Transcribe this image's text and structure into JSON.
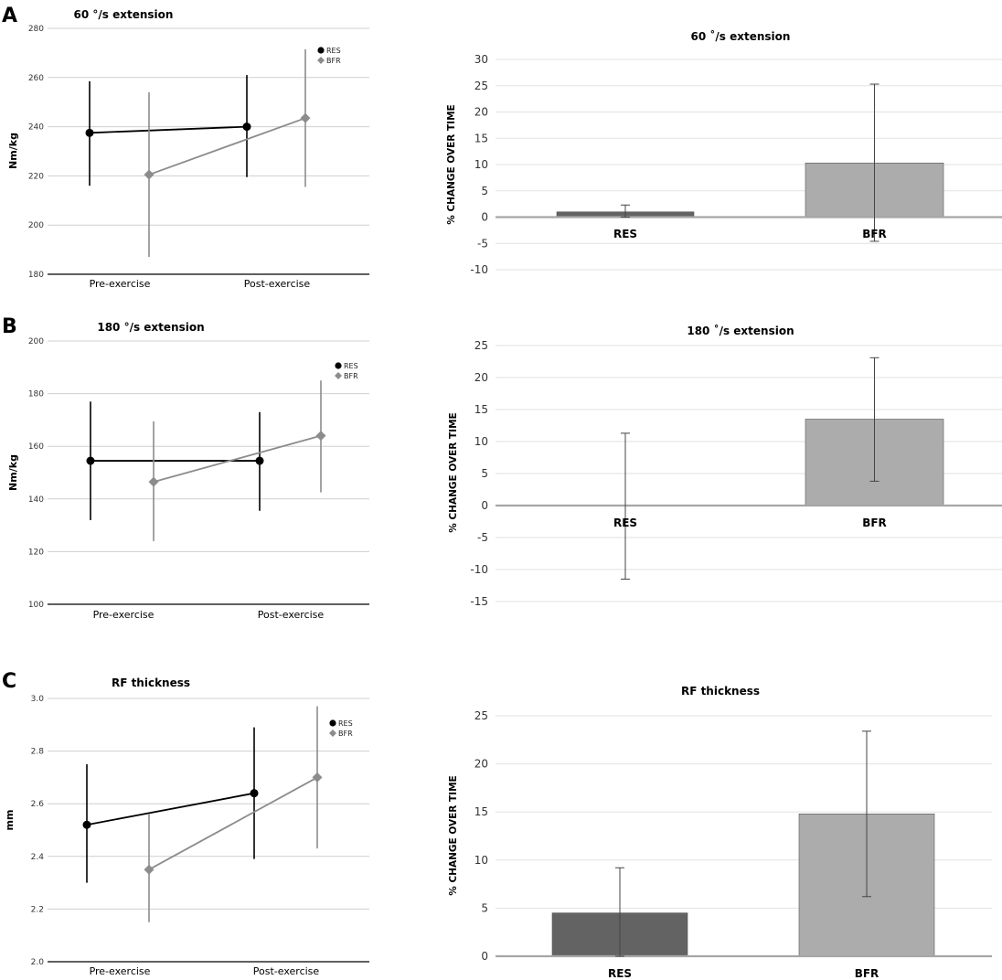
{
  "panels": [
    "A",
    "B",
    "C"
  ],
  "chart_data": [
    {
      "type": "line",
      "panel": "A",
      "title": "60 °/s  extension",
      "ylabel": "Nm/kg",
      "ylim": [
        180,
        280
      ],
      "yticks": [
        180,
        200,
        220,
        240,
        260,
        280
      ],
      "categories": [
        "Pre-exercise",
        "Post-exercise"
      ],
      "legend_position": "top-right",
      "series": [
        {
          "name": "RES",
          "color": "#000000",
          "marker": "circle",
          "values": [
            237.5,
            240.0
          ],
          "err_low": [
            216.0,
            219.5
          ],
          "err_high": [
            258.5,
            261.0
          ]
        },
        {
          "name": "BFR",
          "color": "#8c8c8c",
          "marker": "diamond",
          "values": [
            220.5,
            243.5
          ],
          "err_low": [
            187.0,
            215.5
          ],
          "err_high": [
            254.0,
            271.5
          ]
        }
      ]
    },
    {
      "type": "bar",
      "panel": "A",
      "title": "60 ˚/s extension",
      "ylabel": "% CHANGE OVER TIME",
      "ylim": [
        -10,
        30
      ],
      "yticks": [
        -10,
        -5,
        0,
        5,
        10,
        15,
        20,
        25,
        30
      ],
      "categories": [
        "RES",
        "BFR"
      ],
      "values": [
        1.0,
        10.3
      ],
      "err_low": [
        0.0,
        -4.6
      ],
      "err_high": [
        2.3,
        25.3
      ],
      "colors": [
        "#636363",
        "#acacac"
      ]
    },
    {
      "type": "line",
      "panel": "B",
      "title": "180 °/s  extension",
      "ylabel": "Nm/kg",
      "ylim": [
        100,
        200
      ],
      "yticks": [
        100,
        120,
        140,
        160,
        180,
        200
      ],
      "categories": [
        "Pre-exercise",
        "Post-exercise"
      ],
      "legend_position": "top-right",
      "series": [
        {
          "name": "RES",
          "color": "#000000",
          "marker": "circle",
          "values": [
            154.5,
            154.5
          ],
          "err_low": [
            132.0,
            135.5
          ],
          "err_high": [
            177.0,
            173.0
          ]
        },
        {
          "name": "BFR",
          "color": "#8c8c8c",
          "marker": "diamond",
          "values": [
            146.5,
            164.0
          ],
          "err_low": [
            124.0,
            142.5
          ],
          "err_high": [
            169.5,
            185.0
          ]
        }
      ]
    },
    {
      "type": "bar",
      "panel": "B",
      "title": "180 ˚/s extension",
      "ylabel": "% CHANGE OVER TIME",
      "ylim": [
        -15,
        25
      ],
      "yticks": [
        -15,
        -10,
        -5,
        0,
        5,
        10,
        15,
        20,
        25
      ],
      "categories": [
        "RES",
        "BFR"
      ],
      "values": [
        0.0,
        13.5
      ],
      "err_low": [
        -11.5,
        3.8
      ],
      "err_high": [
        11.3,
        23.1
      ],
      "colors": [
        "#636363",
        "#acacac"
      ]
    },
    {
      "type": "line",
      "panel": "C",
      "title": "RF thickness",
      "ylabel": "mm",
      "ylim": [
        2.0,
        3.0
      ],
      "yticks": [
        "2.0",
        "2.2",
        "2.4",
        "2.6",
        "2.8",
        "3.0"
      ],
      "categories": [
        "Pre-exercise",
        "Post-exercise"
      ],
      "legend_position": "top-right",
      "series": [
        {
          "name": "RES",
          "color": "#000000",
          "marker": "circle",
          "values": [
            2.52,
            2.64
          ],
          "err_low": [
            2.3,
            2.39
          ],
          "err_high": [
            2.75,
            2.89
          ]
        },
        {
          "name": "BFR",
          "color": "#8c8c8c",
          "marker": "diamond",
          "values": [
            2.35,
            2.7
          ],
          "err_low": [
            2.15,
            2.43
          ],
          "err_high": [
            2.56,
            2.97
          ]
        }
      ]
    },
    {
      "type": "bar",
      "panel": "C",
      "title": "RF thickness",
      "ylabel": "% CHANGE OVER TIME",
      "ylim": [
        0,
        25
      ],
      "yticks": [
        0,
        5,
        10,
        15,
        20,
        25
      ],
      "categories": [
        "RES",
        "BFR"
      ],
      "values": [
        4.5,
        14.8
      ],
      "err_low": [
        0.0,
        6.2
      ],
      "err_high": [
        9.2,
        23.4
      ],
      "colors": [
        "#636363",
        "#acacac"
      ]
    }
  ]
}
